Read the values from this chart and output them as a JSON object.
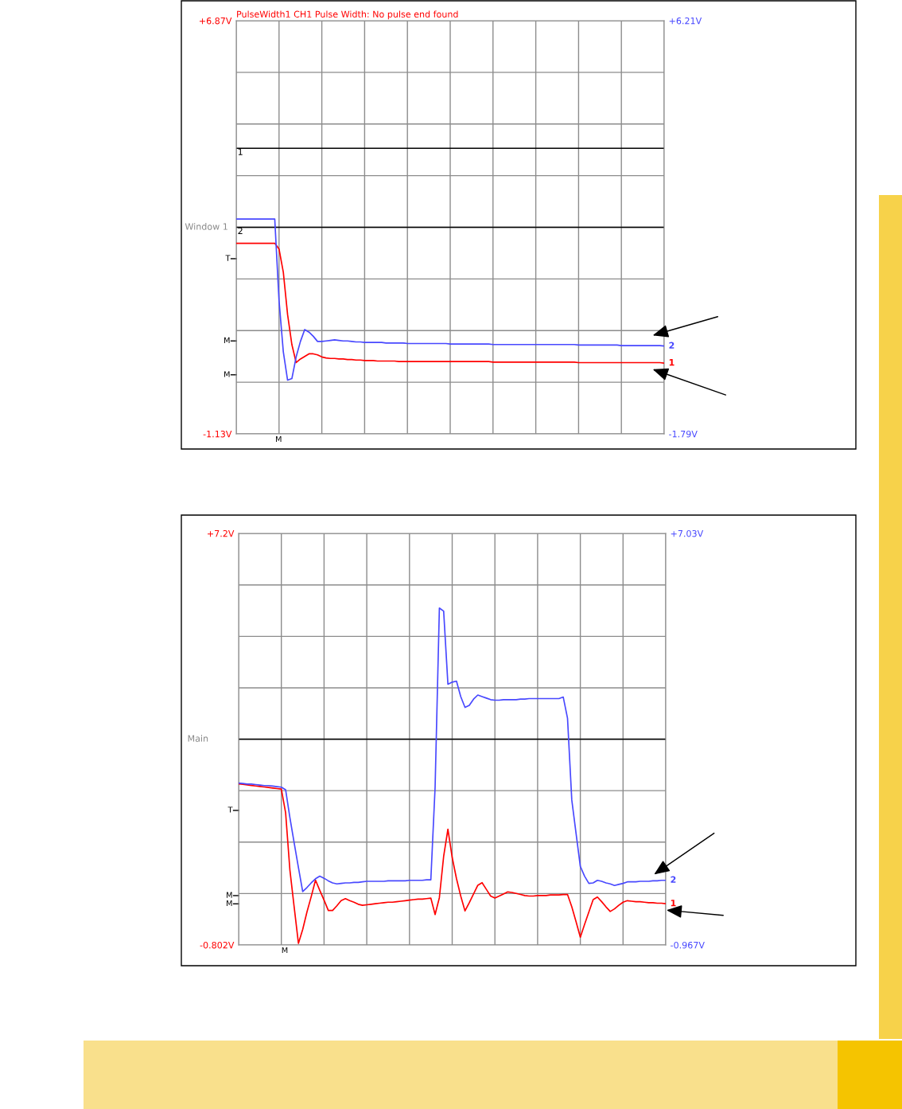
{
  "chart_data": [
    {
      "type": "line",
      "title": "PulseWidth1 CH1 Pulse Width: No pulse end found",
      "annotations": [
        "Window 1",
        "M",
        {
          "text": "1",
          "y": 4.4
        },
        {
          "text": "2",
          "y": 2.87
        },
        "T",
        "M",
        "M"
      ],
      "categories": [
        null,
        null,
        null,
        null,
        null,
        null,
        null,
        null,
        null,
        null,
        null,
        null,
        null,
        null,
        null,
        null,
        null,
        null,
        null,
        null,
        null,
        null,
        null,
        null,
        null,
        null,
        null,
        null,
        null,
        null,
        null,
        null,
        null,
        null,
        null,
        null,
        null,
        null,
        null,
        null,
        null,
        null,
        null,
        null,
        null,
        null,
        null,
        null,
        null,
        null,
        null,
        null,
        null,
        null,
        null,
        null,
        null,
        null,
        null,
        null,
        null,
        null,
        null,
        null,
        null,
        null,
        null,
        null,
        null,
        null,
        null,
        null,
        null,
        null,
        null,
        null,
        null,
        null,
        null,
        null,
        null,
        null,
        null,
        null,
        null,
        null,
        null,
        null,
        null,
        null,
        null,
        null,
        null,
        null,
        null,
        null,
        null,
        null,
        null,
        null,
        null
      ],
      "ylim": [
        -1.13,
        6.87
      ],
      "yticks": [
        {
          "value": -1.13,
          "label": "-1.13V"
        },
        {
          "value": -0.13,
          "label": null
        },
        {
          "value": 0.87,
          "label": null
        },
        {
          "value": 1.87,
          "label": null
        },
        {
          "value": 2.87,
          "label": null
        },
        {
          "value": 3.87,
          "label": null
        },
        {
          "value": 4.87,
          "label": null
        },
        {
          "value": 5.87,
          "label": null
        },
        {
          "value": 6.87,
          "label": "+6.87V"
        }
      ],
      "y2lim": [
        -1.79,
        6.21
      ],
      "y2ticks": [
        {
          "value": -1.79,
          "label": "-1.79V"
        },
        {
          "value": 6.21,
          "label": "+6.21V"
        }
      ],
      "grid": true,
      "tick_labels": "y",
      "series": [
        {
          "name": "1",
          "color": "#ff0000",
          "values": [
            2.56,
            2.56,
            2.56,
            2.56,
            2.56,
            2.56,
            2.56,
            2.56,
            2.56,
            2.56,
            2.45,
            2.0,
            1.18,
            0.6,
            0.25,
            0.32,
            0.37,
            0.42,
            0.42,
            0.4,
            0.36,
            0.34,
            0.33,
            0.33,
            0.32,
            0.32,
            0.31,
            0.31,
            0.3,
            0.3,
            0.29,
            0.29,
            0.29,
            0.28,
            0.28,
            0.28,
            0.28,
            0.28,
            0.27,
            0.27,
            0.27,
            0.27,
            0.27,
            0.27,
            0.27,
            0.27,
            0.27,
            0.27,
            0.27,
            0.27,
            0.27,
            0.27,
            0.27,
            0.27,
            0.27,
            0.27,
            0.27,
            0.27,
            0.27,
            0.27,
            0.26,
            0.26,
            0.26,
            0.26,
            0.26,
            0.26,
            0.26,
            0.26,
            0.26,
            0.26,
            0.26,
            0.26,
            0.26,
            0.26,
            0.26,
            0.26,
            0.26,
            0.26,
            0.26,
            0.26,
            0.25,
            0.25,
            0.25,
            0.25,
            0.25,
            0.25,
            0.25,
            0.25,
            0.25,
            0.25,
            0.25,
            0.25,
            0.25,
            0.25,
            0.25,
            0.25,
            0.25,
            0.25,
            0.25,
            0.25,
            0.24
          ]
        },
        {
          "name": "2",
          "color": "#4848ff",
          "axis": "y2",
          "values": [
            2.37,
            2.37,
            2.37,
            2.37,
            2.37,
            2.37,
            2.37,
            2.37,
            2.37,
            2.37,
            0.79,
            -0.2,
            -0.75,
            -0.72,
            -0.3,
            0.0,
            0.23,
            0.18,
            0.1,
            0.0,
            0.0,
            0.01,
            0.02,
            0.03,
            0.02,
            0.01,
            0.01,
            0.0,
            -0.01,
            -0.01,
            -0.02,
            -0.02,
            -0.02,
            -0.02,
            -0.02,
            -0.03,
            -0.03,
            -0.03,
            -0.03,
            -0.03,
            -0.04,
            -0.04,
            -0.04,
            -0.04,
            -0.04,
            -0.04,
            -0.04,
            -0.04,
            -0.04,
            -0.04,
            -0.05,
            -0.05,
            -0.05,
            -0.05,
            -0.05,
            -0.05,
            -0.05,
            -0.05,
            -0.05,
            -0.05,
            -0.06,
            -0.06,
            -0.06,
            -0.06,
            -0.06,
            -0.06,
            -0.06,
            -0.06,
            -0.06,
            -0.06,
            -0.06,
            -0.06,
            -0.06,
            -0.06,
            -0.06,
            -0.06,
            -0.06,
            -0.06,
            -0.06,
            -0.06,
            -0.07,
            -0.07,
            -0.07,
            -0.07,
            -0.07,
            -0.07,
            -0.07,
            -0.07,
            -0.07,
            -0.07,
            -0.08,
            -0.08,
            -0.08,
            -0.08,
            -0.08,
            -0.08,
            -0.08,
            -0.08,
            -0.08,
            -0.08,
            -0.09
          ]
        }
      ],
      "ref_lines": [
        {
          "axis": "y",
          "value": 4.4,
          "color": "#000000",
          "line_style": "solid"
        },
        {
          "axis": "y",
          "value": 2.87,
          "color": "#000000",
          "line_style": "solid"
        }
      ]
    },
    {
      "type": "line",
      "annotations": [
        "Main",
        "M",
        "T",
        "M",
        "M"
      ],
      "categories": [
        null,
        null,
        null,
        null,
        null,
        null,
        null,
        null,
        null,
        null,
        null,
        null,
        null,
        null,
        null,
        null,
        null,
        null,
        null,
        null,
        null,
        null,
        null,
        null,
        null,
        null,
        null,
        null,
        null,
        null,
        null,
        null,
        null,
        null,
        null,
        null,
        null,
        null,
        null,
        null,
        null,
        null,
        null,
        null,
        null,
        null,
        null,
        null,
        null,
        null,
        null,
        null,
        null,
        null,
        null,
        null,
        null,
        null,
        null,
        null,
        null,
        null,
        null,
        null,
        null,
        null,
        null,
        null,
        null,
        null,
        null,
        null,
        null,
        null,
        null,
        null,
        null,
        null,
        null,
        null,
        null,
        null,
        null,
        null,
        null,
        null,
        null,
        null,
        null,
        null,
        null,
        null,
        null,
        null,
        null,
        null,
        null,
        null,
        null,
        null,
        null
      ],
      "ylim": [
        -0.802,
        7.2
      ],
      "yticks": [
        {
          "value": -0.802,
          "label": "-0.802V"
        },
        {
          "value": 0.198,
          "label": null
        },
        {
          "value": 1.198,
          "label": null
        },
        {
          "value": 2.198,
          "label": null
        },
        {
          "value": 3.198,
          "label": null
        },
        {
          "value": 4.198,
          "label": null
        },
        {
          "value": 5.198,
          "label": null
        },
        {
          "value": 6.198,
          "label": null
        },
        {
          "value": 7.2,
          "label": "+7.2V"
        }
      ],
      "y2lim": [
        -0.967,
        7.03
      ],
      "y2ticks": [
        {
          "value": -0.967,
          "label": "-0.967V"
        },
        {
          "value": 7.03,
          "label": "+7.03V"
        }
      ],
      "grid": true,
      "tick_labels": "y",
      "series": [
        {
          "name": "1",
          "color": "#ff0000",
          "values": [
            2.33,
            2.32,
            2.31,
            2.3,
            2.29,
            2.28,
            2.27,
            2.26,
            2.25,
            2.24,
            2.23,
            1.77,
            0.66,
            -0.06,
            -0.77,
            -0.5,
            -0.16,
            0.14,
            0.46,
            0.26,
            0.07,
            -0.13,
            -0.13,
            -0.04,
            0.06,
            0.1,
            0.06,
            0.03,
            -0.01,
            -0.03,
            -0.02,
            -0.01,
            0.0,
            0.01,
            0.02,
            0.03,
            0.03,
            0.04,
            0.05,
            0.06,
            0.07,
            0.08,
            0.09,
            0.09,
            0.1,
            0.11,
            -0.21,
            0.12,
            0.92,
            1.45,
            0.9,
            0.49,
            0.15,
            -0.14,
            0.02,
            0.19,
            0.36,
            0.41,
            0.28,
            0.15,
            0.11,
            0.15,
            0.19,
            0.23,
            0.22,
            0.2,
            0.18,
            0.16,
            0.15,
            0.15,
            0.16,
            0.16,
            0.16,
            0.17,
            0.17,
            0.17,
            0.18,
            0.18,
            -0.06,
            -0.35,
            -0.65,
            -0.4,
            -0.16,
            0.08,
            0.13,
            0.04,
            -0.06,
            -0.15,
            -0.1,
            -0.03,
            0.03,
            0.06,
            0.05,
            0.04,
            0.04,
            0.03,
            0.02,
            0.02,
            0.01,
            0.01,
            0.0
          ]
        },
        {
          "name": "2",
          "color": "#4848ff",
          "axis": "y2",
          "values": [
            2.18,
            2.17,
            2.16,
            2.16,
            2.15,
            2.14,
            2.13,
            2.13,
            2.12,
            2.11,
            2.1,
            2.05,
            1.51,
            1.02,
            0.54,
            0.07,
            0.15,
            0.24,
            0.32,
            0.37,
            0.33,
            0.28,
            0.24,
            0.22,
            0.23,
            0.24,
            0.24,
            0.25,
            0.25,
            0.26,
            0.27,
            0.27,
            0.27,
            0.27,
            0.27,
            0.28,
            0.28,
            0.28,
            0.28,
            0.28,
            0.29,
            0.29,
            0.29,
            0.29,
            0.3,
            0.3,
            2.1,
            5.58,
            5.52,
            4.1,
            4.14,
            4.16,
            3.86,
            3.65,
            3.69,
            3.81,
            3.89,
            3.86,
            3.83,
            3.8,
            3.79,
            3.79,
            3.8,
            3.8,
            3.8,
            3.8,
            3.81,
            3.81,
            3.82,
            3.82,
            3.82,
            3.82,
            3.82,
            3.82,
            3.82,
            3.82,
            3.85,
            3.44,
            1.85,
            1.2,
            0.56,
            0.37,
            0.23,
            0.24,
            0.29,
            0.27,
            0.24,
            0.22,
            0.19,
            0.21,
            0.23,
            0.26,
            0.26,
            0.26,
            0.27,
            0.27,
            0.27,
            0.28,
            0.28,
            0.29,
            0.29
          ]
        }
      ],
      "ref_lines": [
        {
          "axis": "y",
          "value": 3.198,
          "color": "#000000",
          "line_style": "solid"
        }
      ]
    }
  ]
}
